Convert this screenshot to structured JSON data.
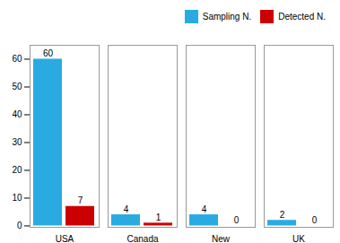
{
  "chart_data": {
    "type": "bar",
    "categories": [
      "USA",
      "Canada",
      "New\nZealand",
      "UK"
    ],
    "series": [
      {
        "name": "Sampling N.",
        "color": "#29ABE2",
        "values": [
          60,
          4,
          4,
          2
        ]
      },
      {
        "name": "Detected N.",
        "color": "#CC0000",
        "values": [
          7,
          1,
          0,
          0
        ]
      }
    ],
    "ylim": [
      -0.5,
      65
    ],
    "yticks": [
      0,
      10,
      20,
      30,
      40,
      50,
      60
    ],
    "legend": "upper right",
    "grid": false,
    "data_labels": true
  }
}
